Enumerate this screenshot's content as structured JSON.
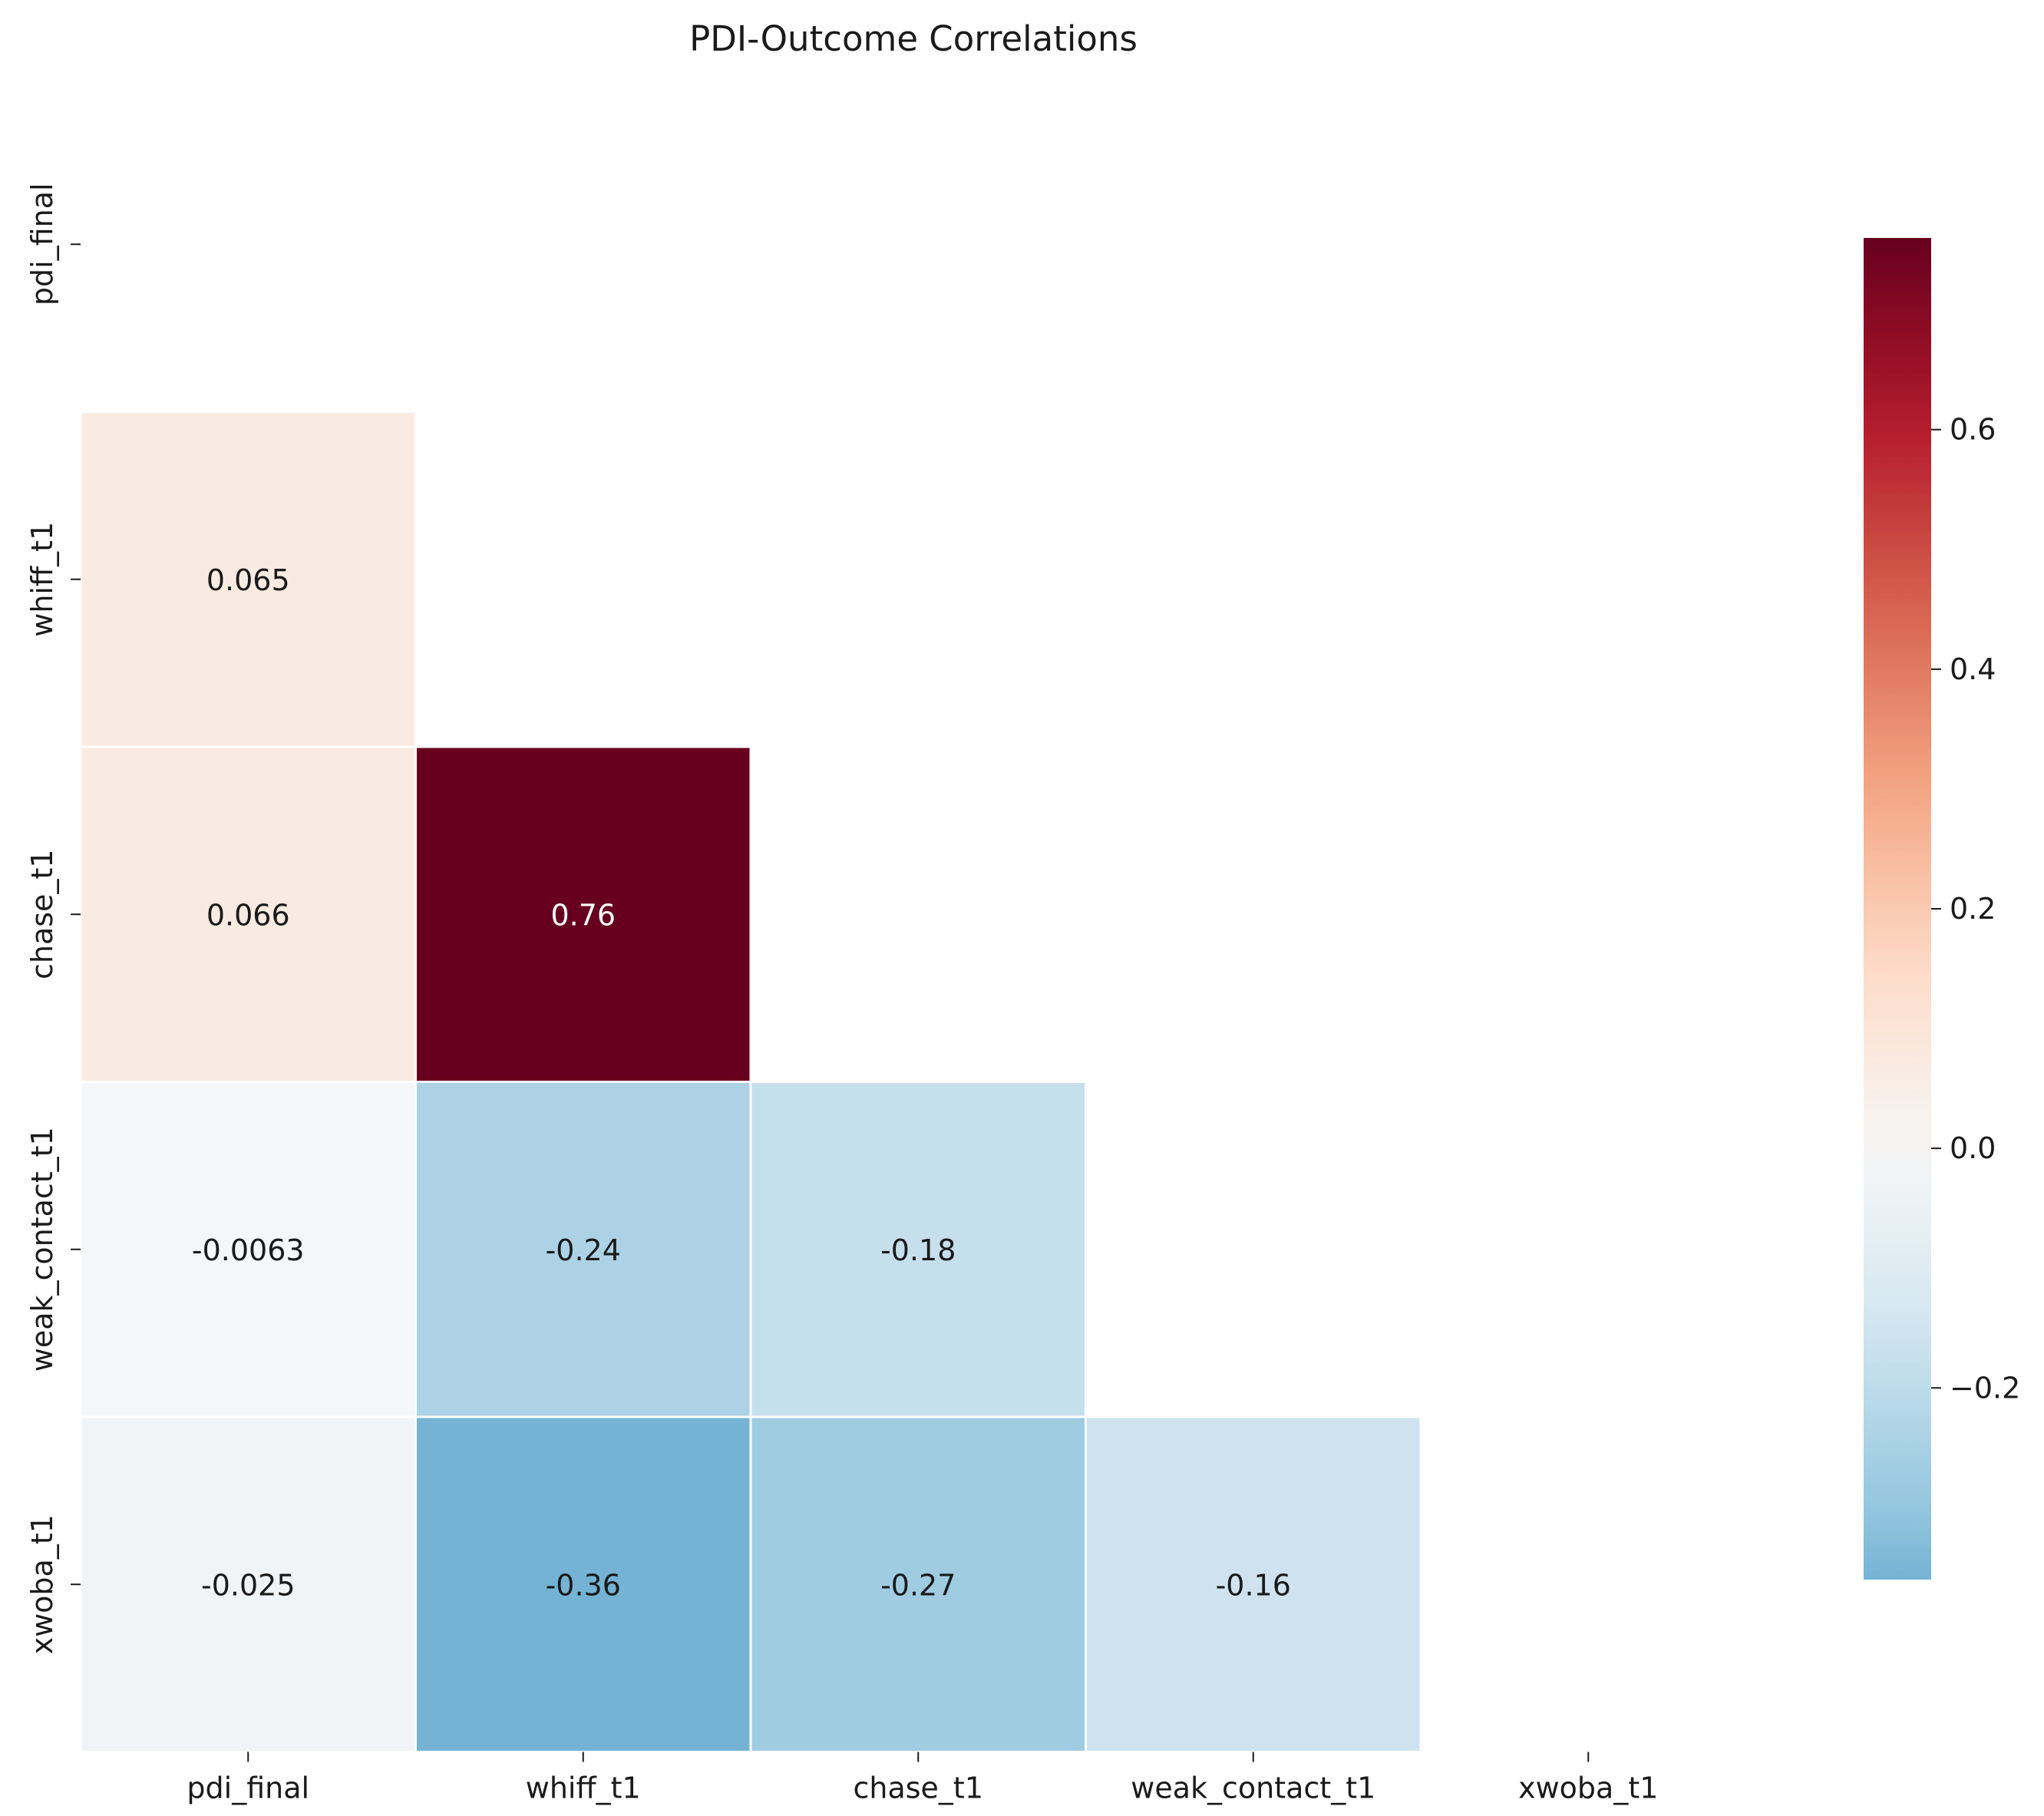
{
  "chart_data": {
    "type": "heatmap",
    "title": "PDI-Outcome Correlations",
    "xlabel": "",
    "ylabel": "",
    "x_categories": [
      "pdi_final",
      "whiff_t1",
      "chase_t1",
      "weak_contact_t1",
      "xwoba_t1"
    ],
    "y_categories": [
      "pdi_final",
      "whiff_t1",
      "chase_t1",
      "weak_contact_t1",
      "xwoba_t1"
    ],
    "mask": "upper-triangle-including-diagonal",
    "cells": [
      {
        "row": 1,
        "col": 0,
        "value": 0.065,
        "label": "0.065"
      },
      {
        "row": 2,
        "col": 0,
        "value": 0.066,
        "label": "0.066"
      },
      {
        "row": 2,
        "col": 1,
        "value": 0.76,
        "label": "0.76"
      },
      {
        "row": 3,
        "col": 0,
        "value": -0.0063,
        "label": "-0.0063"
      },
      {
        "row": 3,
        "col": 1,
        "value": -0.24,
        "label": "-0.24"
      },
      {
        "row": 3,
        "col": 2,
        "value": -0.18,
        "label": "-0.18"
      },
      {
        "row": 4,
        "col": 0,
        "value": -0.025,
        "label": "-0.025"
      },
      {
        "row": 4,
        "col": 1,
        "value": -0.36,
        "label": "-0.36"
      },
      {
        "row": 4,
        "col": 2,
        "value": -0.27,
        "label": "-0.27"
      },
      {
        "row": 4,
        "col": 3,
        "value": -0.16,
        "label": "-0.16"
      }
    ],
    "colorbar": {
      "colormap": "RdBu_r",
      "center": 0,
      "vmin": -0.36,
      "vmax": 0.76,
      "ticks": [
        -0.2,
        0.0,
        0.2,
        0.4,
        0.6
      ],
      "tick_labels": [
        "−0.2",
        "0.0",
        "0.2",
        "0.4",
        "0.6"
      ],
      "placement": "right"
    },
    "grid": false
  }
}
